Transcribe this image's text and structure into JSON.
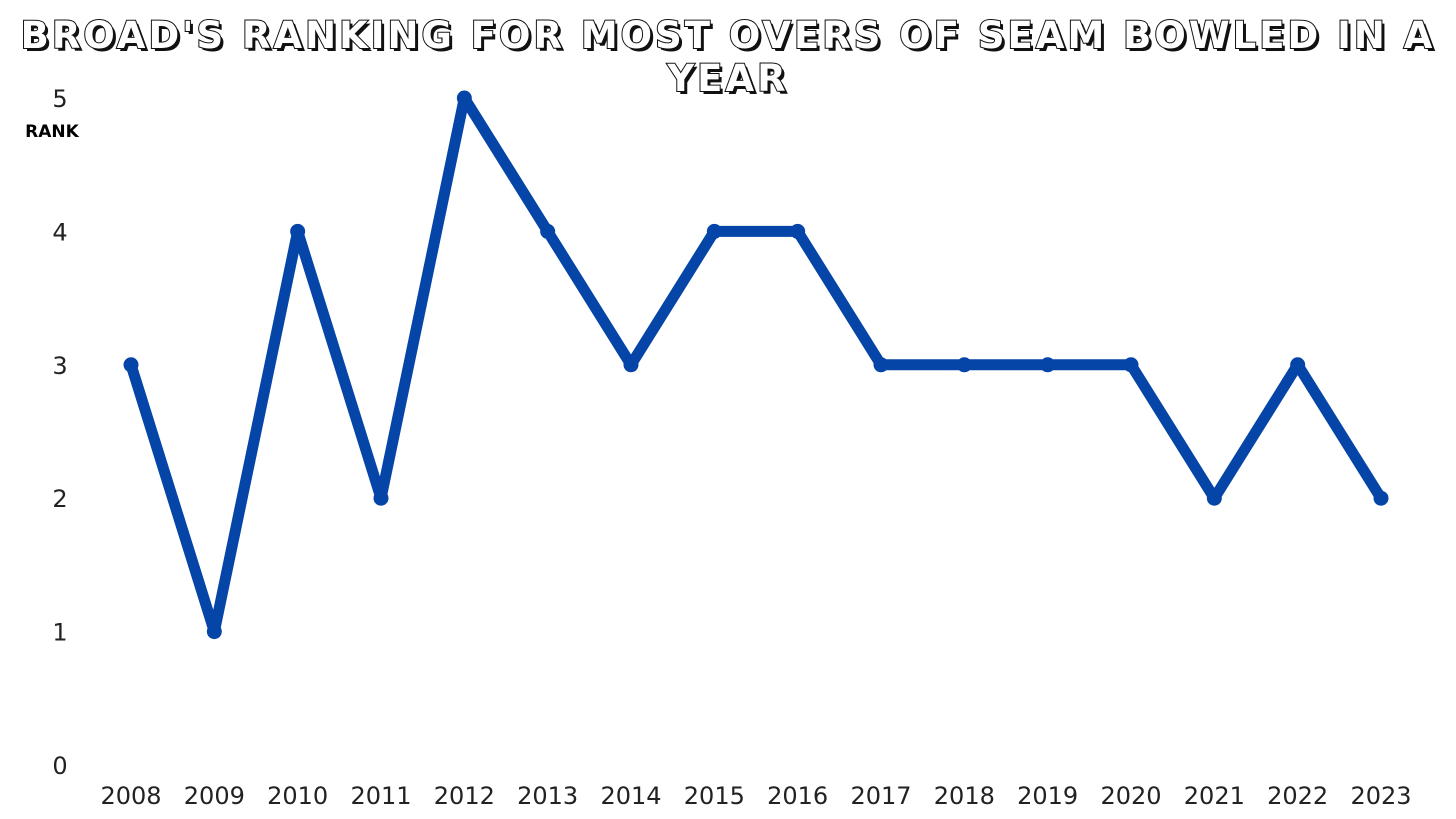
{
  "chart_data": {
    "type": "line",
    "title": "Broad's ranking for most overs of seam bowled in a year",
    "xlabel": "",
    "ylabel": "RANK",
    "x": [
      "2008",
      "2009",
      "2010",
      "2011",
      "2012",
      "2013",
      "2014",
      "2015",
      "2016",
      "2017",
      "2018",
      "2019",
      "2020",
      "2021",
      "2022",
      "2023"
    ],
    "series": [
      {
        "values": [
          3,
          1,
          4,
          2,
          5,
          4,
          3,
          4,
          4,
          3,
          3,
          3,
          3,
          2,
          3,
          2
        ]
      }
    ],
    "ylim": [
      0,
      5
    ],
    "yticks": [
      0,
      1,
      2,
      3,
      4,
      5
    ],
    "grid": false,
    "colors": {
      "line": "#0645A8",
      "text": "#222222"
    }
  }
}
